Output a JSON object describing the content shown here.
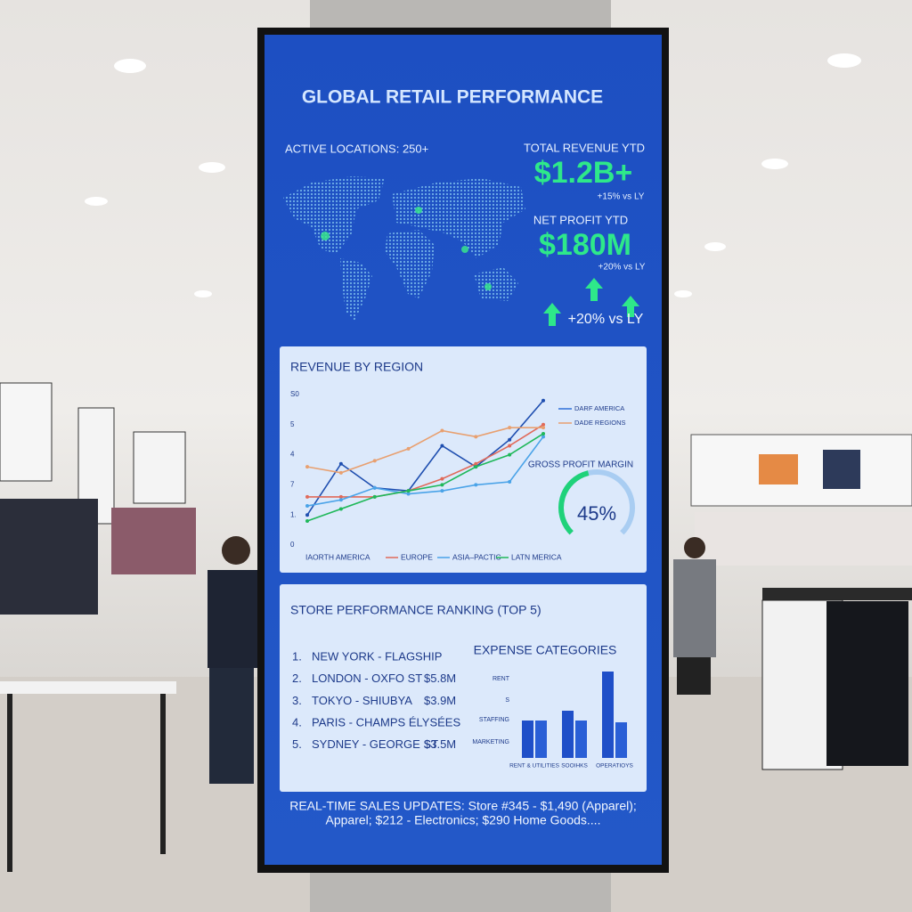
{
  "header": {
    "title": "GLOBAL RETAIL PERFORMANCE"
  },
  "kpis": {
    "locations": "ACTIVE LOCATIONS: 250+",
    "revenue_label": "TOTAL REVENUE YTD",
    "revenue_value": "$1.2B+",
    "revenue_change": "+15% vs LY",
    "profit_label": "NET PROFIT YTD",
    "profit_value": "$180M",
    "profit_change": "+20% vs LY",
    "growth": "+20% vs LY"
  },
  "chart_data": [
    {
      "type": "line",
      "title": "REVENUE BY REGION",
      "categories": [
        null,
        null,
        null,
        null,
        null,
        null,
        null,
        null
      ],
      "y_labels": [
        "S0",
        "5",
        "4",
        "7",
        "1.",
        "0"
      ],
      "ylim": [
        0,
        5
      ],
      "series": [
        {
          "name": "IAORTH AMERICA",
          "color": "#1f4fb0",
          "values": [
            1.0,
            2.7,
            1.9,
            1.8,
            3.3,
            2.6,
            3.5,
            4.8
          ]
        },
        {
          "name": "EUROPE",
          "color": "#e06a5a",
          "values": [
            1.6,
            1.6,
            1.6,
            1.8,
            2.2,
            2.7,
            3.3,
            4.0
          ]
        },
        {
          "name": "ASIA–PACTIC",
          "color": "#4aa3e8",
          "values": [
            1.3,
            1.5,
            1.9,
            1.7,
            1.8,
            2.0,
            2.1,
            3.6
          ]
        },
        {
          "name": "LATN MERICA",
          "color": "#20b85a",
          "values": [
            0.8,
            1.2,
            1.6,
            1.8,
            2.0,
            2.6,
            3.0,
            3.7
          ]
        },
        {
          "name": "DADE REGIONS",
          "color": "#e8a070",
          "values": [
            2.6,
            2.4,
            2.8,
            3.2,
            3.8,
            3.6,
            3.9,
            3.9
          ]
        }
      ],
      "extra_legend": {
        "name": "DARF AMERICA",
        "color": "#2f6fd8"
      }
    },
    {
      "type": "gauge",
      "title": "GROSS PROFIT MARGIN",
      "values": [
        45
      ],
      "value_labels": [
        "45%"
      ],
      "ylim": [
        0,
        100
      ],
      "color": "#1fd27a"
    },
    {
      "type": "bar",
      "title": "EXPENSE CATEGORIES",
      "categories": [
        "RENT & UTILITIES",
        "SOOIHKS",
        "OPERATIOYS"
      ],
      "side_labels": [
        "RENT",
        "S",
        "STAFFING",
        "MARKETING"
      ],
      "ylim": [
        0,
        100
      ],
      "series": [
        {
          "color": "#1f4fc8",
          "values": [
            42,
            53,
            97
          ]
        },
        {
          "color": "#2a5fd6",
          "values": [
            42,
            42,
            40
          ]
        }
      ]
    }
  ],
  "ranking": {
    "title": "STORE PERFORMANCE RANKING (TOP 5)",
    "rows": [
      [
        "1.",
        "NEW YORK - FLAGSHIP",
        null
      ],
      [
        "2.",
        "LONDON - OXFO ST",
        "$5.8M"
      ],
      [
        "3.",
        "TOKYO - SHIUBYA",
        "$3.9M"
      ],
      [
        "4.",
        "PARIS - CHAMPS ÉLYSÉES",
        null
      ],
      [
        "5.",
        "SYDNEY - GEORGE ST",
        "$3.5M"
      ]
    ]
  },
  "ticker": [
    "REAL-TIME SALES UPDATES: Store #345 - $1,490 (Apparel);",
    "Apparel; $212 - Electronics; $290 Home Goods...."
  ]
}
